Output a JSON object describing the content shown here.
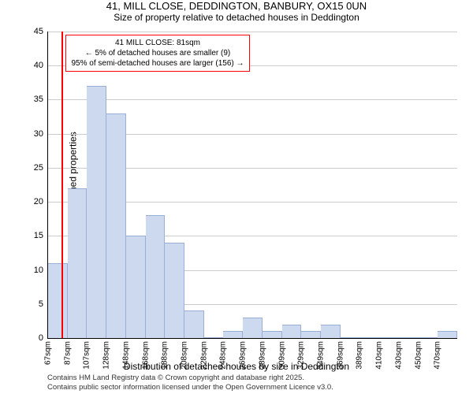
{
  "title": "41, MILL CLOSE, DEDDINGTON, BANBURY, OX15 0UN",
  "subtitle": "Size of property relative to detached houses in Deddington",
  "chart": {
    "type": "histogram",
    "ylabel": "Number of detached properties",
    "xlabel": "Distribution of detached houses by size in Deddington",
    "ylim": [
      0,
      45
    ],
    "ytick_step": 5,
    "yticks": [
      0,
      5,
      10,
      15,
      20,
      25,
      30,
      35,
      40,
      45
    ],
    "x_start": 67,
    "x_step": 20,
    "x_count": 21,
    "x_labels": [
      "67sqm",
      "87sqm",
      "107sqm",
      "128sqm",
      "148sqm",
      "168sqm",
      "188sqm",
      "208sqm",
      "228sqm",
      "248sqm",
      "269sqm",
      "289sqm",
      "309sqm",
      "329sqm",
      "349sqm",
      "369sqm",
      "389sqm",
      "410sqm",
      "430sqm",
      "450sqm",
      "470sqm"
    ],
    "values": [
      11,
      22,
      37,
      33,
      15,
      18,
      14,
      4,
      0,
      1,
      3,
      1,
      2,
      1,
      2,
      0,
      0,
      0,
      0,
      0,
      1
    ],
    "bar_color": "#cdd9ef",
    "bar_border": "#9aaed6",
    "grid_color": "#cccccc",
    "background_color": "#ffffff",
    "label_fontsize": 12,
    "tick_fontsize": 11
  },
  "marker": {
    "x_value": 81,
    "color": "#ff0000",
    "title": "41 MILL CLOSE: 81sqm",
    "line1": "← 5% of detached houses are smaller (9)",
    "line2": "95% of semi-detached houses are larger (156) →",
    "box_border": "#ff0000"
  },
  "footer": {
    "line1": "Contains HM Land Registry data © Crown copyright and database right 2025.",
    "line2": "Contains public sector information licensed under the Open Government Licence v3.0."
  }
}
